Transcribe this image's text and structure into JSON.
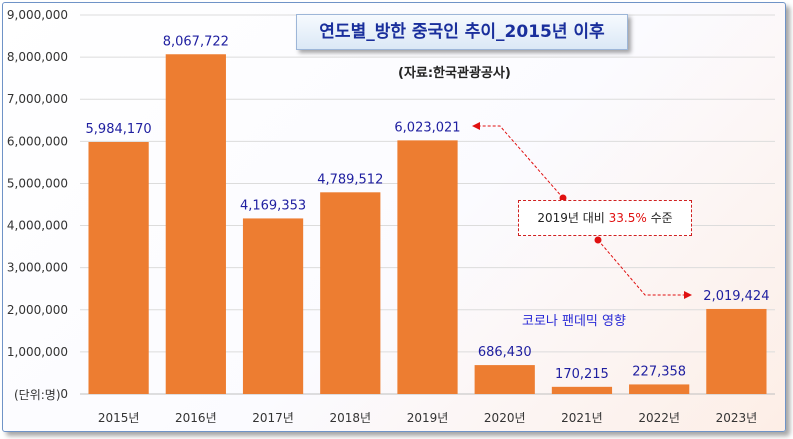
{
  "title": "연도별_방한 중국인 추이_2015년 이후",
  "source": "(자료:한국관광공사)",
  "unit_label": "(단위:명)",
  "covid_note": "코로나 팬데믹 영향",
  "comparison": {
    "prefix": "2019년 대비",
    "percent": "33.5%",
    "suffix": "수준"
  },
  "colors": {
    "bar": "#ed7d31",
    "label": "#1f1fa0",
    "arrow": "#e01010",
    "title": "#1a2f9c"
  },
  "chart_data": {
    "type": "bar",
    "categories": [
      "2015년",
      "2016년",
      "2017년",
      "2018년",
      "2019년",
      "2020년",
      "2021년",
      "2022년",
      "2023년"
    ],
    "values": [
      5984170,
      8067722,
      4169353,
      4789512,
      6023021,
      686430,
      170215,
      227358,
      2019424
    ],
    "value_labels": [
      "5,984,170",
      "8,067,722",
      "4,169,353",
      "4,789,512",
      "6,023,021",
      "686,430",
      "170,215",
      "227,358",
      "2,019,424"
    ],
    "ylim": [
      0,
      9000000
    ],
    "yticks": [
      "0",
      "1,000,000",
      "2,000,000",
      "3,000,000",
      "4,000,000",
      "5,000,000",
      "6,000,000",
      "7,000,000",
      "8,000,000",
      "9,000,000"
    ],
    "grid": true,
    "legend": "none"
  }
}
